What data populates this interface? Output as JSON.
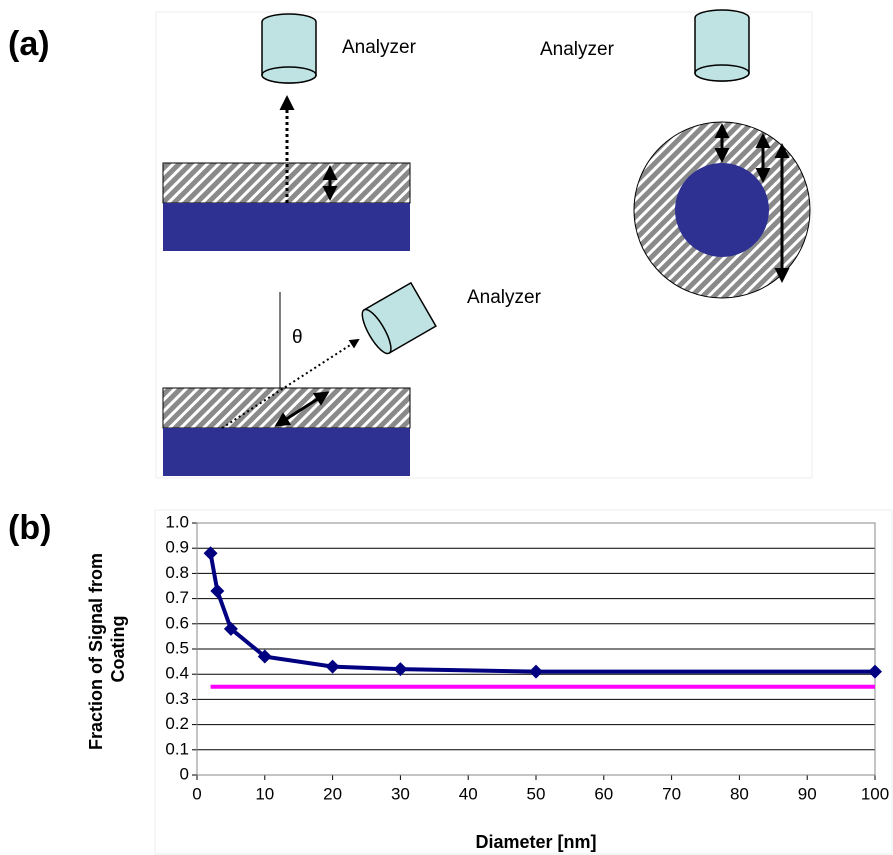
{
  "diagram": {
    "label": "(a)",
    "analyzers": [
      "Analyzer",
      "Analyzer",
      "Analyzer"
    ],
    "theta": "θ"
  },
  "chart_label": "(b)",
  "chart_data": {
    "type": "line",
    "xlabel": "Diameter [nm]",
    "ylabel": "Fraction of Signal from Coating",
    "series": [
      {
        "color": "#000080",
        "x": [
          2,
          3,
          5,
          10,
          20,
          30,
          50,
          100
        ],
        "values": [
          0.88,
          0.73,
          0.58,
          0.47,
          0.43,
          0.42,
          0.41,
          0.41
        ],
        "marker": "diamond"
      },
      {
        "color": "#ff00ff",
        "x": [
          2,
          100
        ],
        "values": [
          0.35,
          0.35
        ]
      }
    ],
    "xlim": [
      0,
      100
    ],
    "xticks": [
      0,
      10,
      20,
      30,
      40,
      50,
      60,
      70,
      80,
      90,
      100
    ],
    "ylim": [
      0,
      1
    ],
    "yticks": [
      0,
      0.1,
      0.2,
      0.3,
      0.4,
      0.5,
      0.6,
      0.7,
      0.8,
      0.9,
      {
        "value": 1,
        "label": "1.0"
      }
    ],
    "grid": true
  }
}
